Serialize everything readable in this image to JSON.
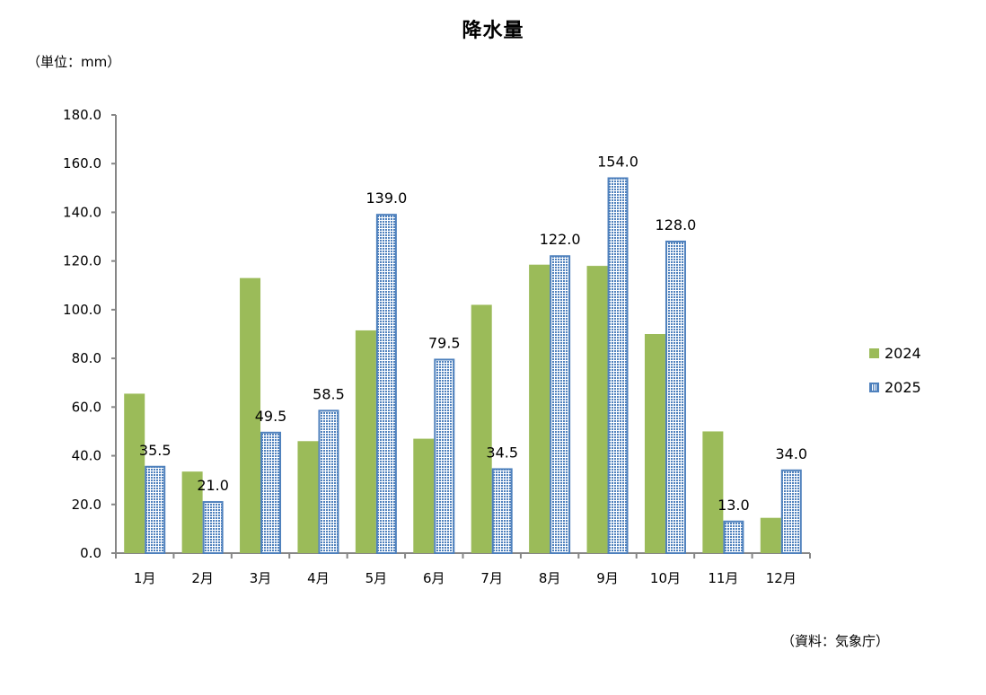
{
  "title": "降水量",
  "unit_label": "（単位：mm）",
  "source_label": "（資料：気象庁）",
  "colors": {
    "series_2024": "#9bbb59",
    "series_2025_border": "#4f81bd",
    "series_2025_fill": "#dbe5f1",
    "axis": "#868686"
  },
  "legend": {
    "items": [
      {
        "label": "2024",
        "icon": "solid-green-square"
      },
      {
        "label": "2025",
        "icon": "dotted-blue-square"
      }
    ]
  },
  "chart_data": {
    "type": "bar",
    "title": "降水量",
    "xlabel": "",
    "ylabel": "（単位：mm）",
    "ylim": [
      0,
      180
    ],
    "yticks": [
      "0.0",
      "20.0",
      "40.0",
      "60.0",
      "80.0",
      "100.0",
      "120.0",
      "140.0",
      "160.0",
      "180.0"
    ],
    "grid": false,
    "legend_position": "right",
    "categories": [
      "1月",
      "2月",
      "3月",
      "4月",
      "5月",
      "6月",
      "7月",
      "8月",
      "9月",
      "10月",
      "11月",
      "12月"
    ],
    "series": [
      {
        "name": "2024",
        "values": [
          65.5,
          33.5,
          113.0,
          46.0,
          91.5,
          47.0,
          102.0,
          118.5,
          118.0,
          90.0,
          50.0,
          14.5
        ],
        "data_labels": false
      },
      {
        "name": "2025",
        "values": [
          35.5,
          21.0,
          49.5,
          58.5,
          139.0,
          79.5,
          34.5,
          122.0,
          154.0,
          128.0,
          13.0,
          34.0
        ],
        "data_labels": true,
        "label_text": [
          "35.5",
          "21.0",
          "49.5",
          "58.5",
          "139.0",
          "79.5",
          "34.5",
          "122.0",
          "154.0",
          "128.0",
          "13.0",
          "34.0"
        ]
      }
    ]
  }
}
